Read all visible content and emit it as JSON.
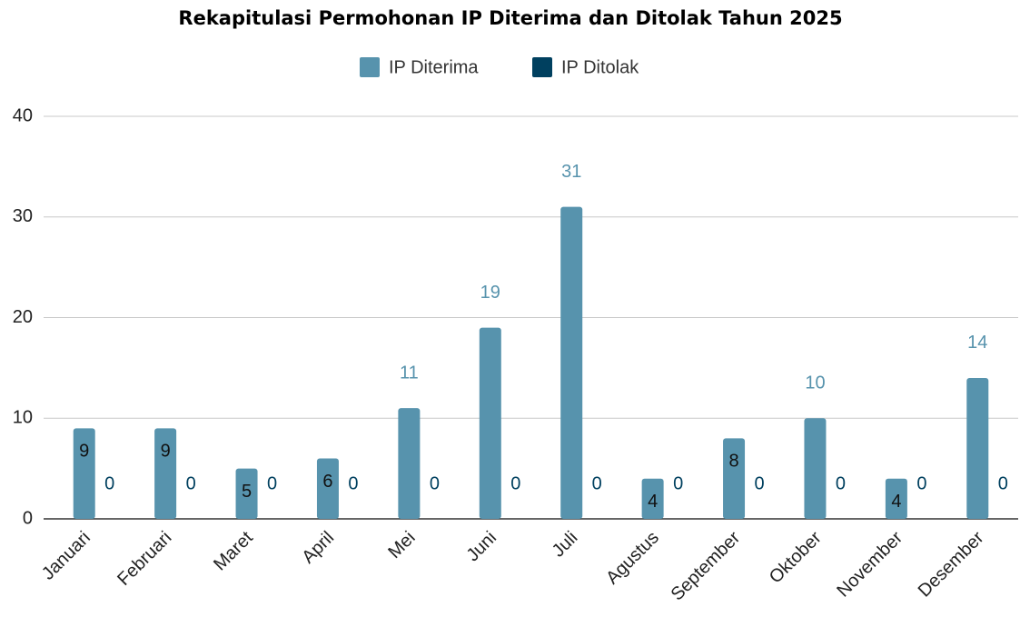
{
  "chart_data": {
    "type": "bar",
    "title": "Rekapitulasi Permohonan IP Diterima dan Ditolak Tahun 2025",
    "categories": [
      "Januari",
      "Februari",
      "Maret",
      "April",
      "Mei",
      "Juni",
      "Juli",
      "Agustus",
      "September",
      "Oktober",
      "November",
      "Desember"
    ],
    "series": [
      {
        "name": "IP Diterima",
        "color": "#5793ad",
        "values": [
          9,
          9,
          5,
          6,
          11,
          19,
          31,
          4,
          8,
          10,
          4,
          14
        ]
      },
      {
        "name": "IP Ditolak",
        "color": "#00405f",
        "values": [
          0,
          0,
          0,
          0,
          0,
          0,
          0,
          0,
          0,
          0,
          0,
          0
        ]
      }
    ],
    "ylim": [
      0,
      40
    ],
    "yticks": [
      0,
      10,
      20,
      30,
      40
    ],
    "grid": true,
    "legend": "top"
  }
}
